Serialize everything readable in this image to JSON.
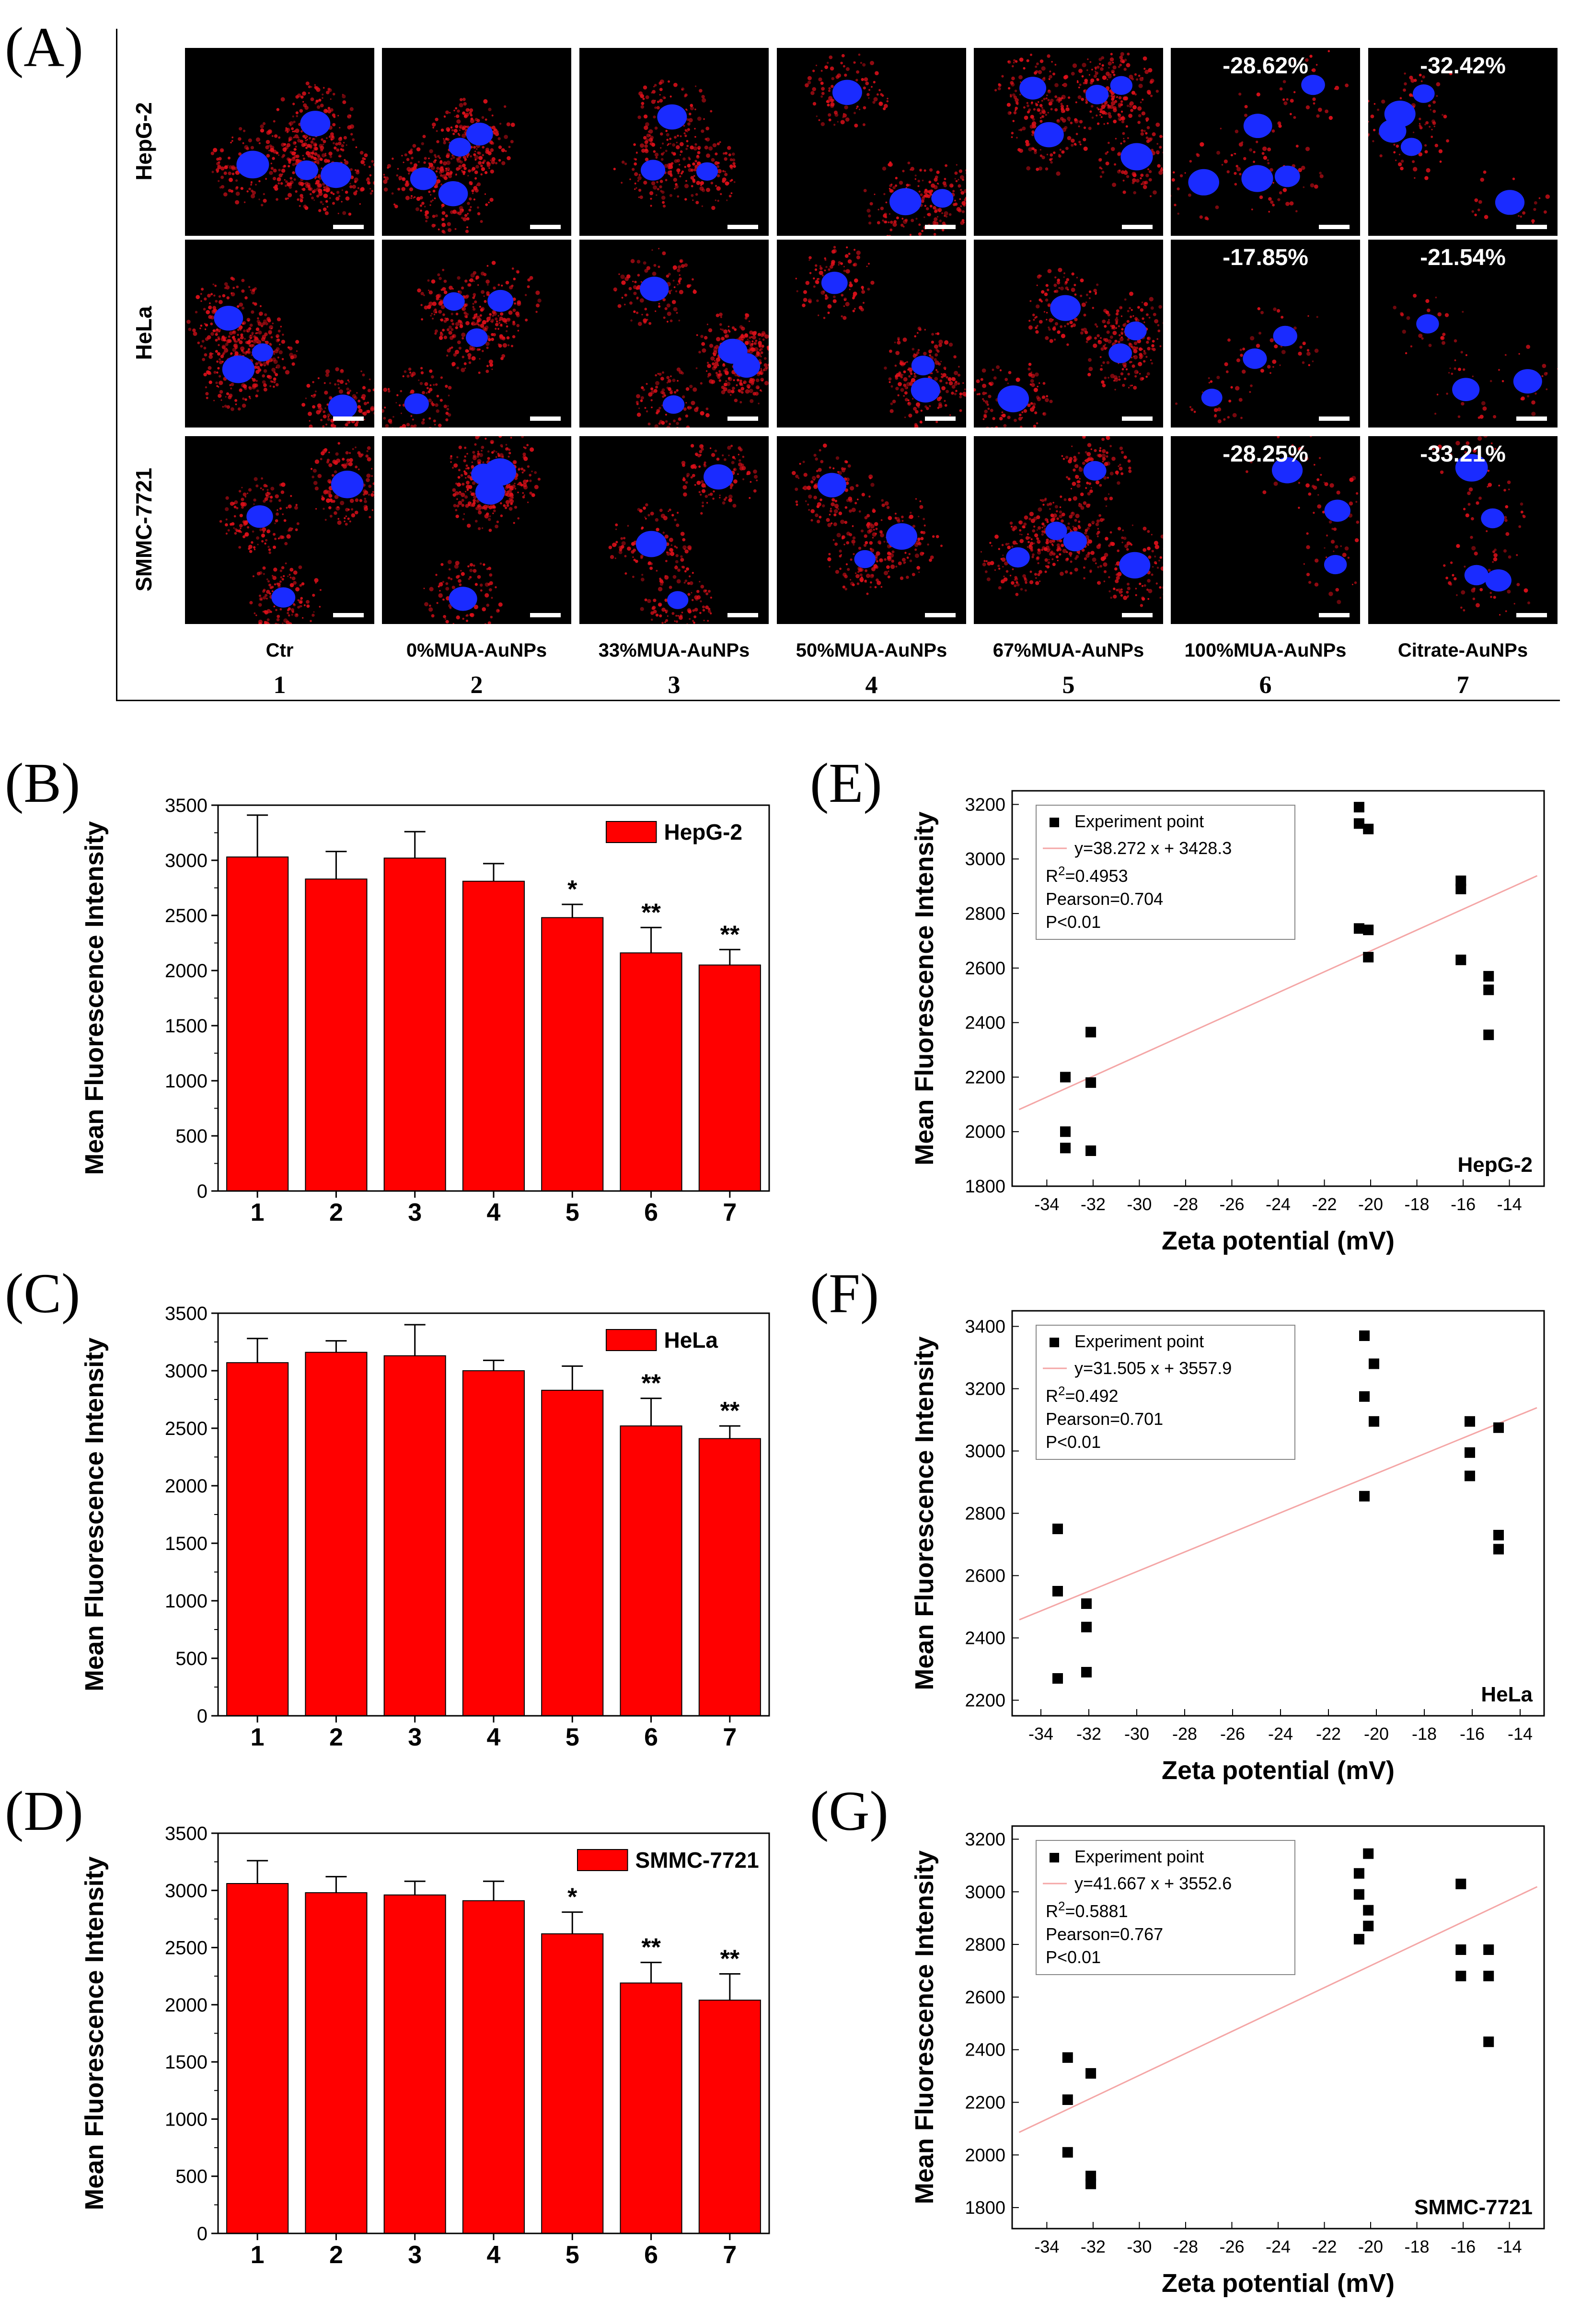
{
  "panels": {
    "a": "(A)",
    "b": "(B)",
    "c": "(C)",
    "d": "(D)",
    "e": "(E)",
    "f": "(F)",
    "g": "(G)"
  },
  "microscopy": {
    "rows": [
      "HepG-2",
      "HeLa",
      "SMMC-7721"
    ],
    "columns": [
      {
        "label": "Ctr",
        "num": "1"
      },
      {
        "label": "0%MUA-AuNPs",
        "num": "2"
      },
      {
        "label": "33%MUA-AuNPs",
        "num": "3"
      },
      {
        "label": "50%MUA-AuNPs",
        "num": "4"
      },
      {
        "label": "67%MUA-AuNPs",
        "num": "5"
      },
      {
        "label": "100%MUA-AuNPs",
        "num": "6"
      },
      {
        "label": "Citrate-AuNPs",
        "num": "7"
      }
    ],
    "percent_labels": [
      [
        "",
        "",
        "",
        "",
        "",
        "-28.62%",
        "-32.42%"
      ],
      [
        "",
        "",
        "",
        "",
        "",
        "-17.85%",
        "-21.54%"
      ],
      [
        "",
        "",
        "",
        "",
        "",
        "-28.25%",
        "-33.21%"
      ]
    ]
  },
  "colors": {
    "bar": "#ff0000",
    "fit": "#f4a6a6",
    "marker": "#000000",
    "red_signal": "#e0101a",
    "nucleus": "#1a2bff"
  },
  "chart_data": [
    {
      "id": "B",
      "type": "bar",
      "legend": "HepG-2",
      "ylabel": "Mean Fluorescence Intensity",
      "categories": [
        "1",
        "2",
        "3",
        "4",
        "5",
        "6",
        "7"
      ],
      "values": [
        3030,
        2830,
        3020,
        2810,
        2480,
        2160,
        2050
      ],
      "errors": [
        380,
        250,
        240,
        160,
        120,
        230,
        140
      ],
      "sig": [
        "",
        "",
        "",
        "",
        "*",
        "**",
        "**"
      ],
      "ylim": [
        0,
        3500
      ],
      "yticks": [
        0,
        500,
        1000,
        1500,
        2000,
        2500,
        3000,
        3500
      ]
    },
    {
      "id": "C",
      "type": "bar",
      "legend": "HeLa",
      "ylabel": "Mean Fluorescence Intensity",
      "categories": [
        "1",
        "2",
        "3",
        "4",
        "5",
        "6",
        "7"
      ],
      "values": [
        3070,
        3160,
        3130,
        3000,
        2830,
        2520,
        2410
      ],
      "errors": [
        210,
        100,
        270,
        90,
        210,
        240,
        110
      ],
      "sig": [
        "",
        "",
        "",
        "",
        "",
        "**",
        "**"
      ],
      "ylim": [
        0,
        3500
      ],
      "yticks": [
        0,
        500,
        1000,
        1500,
        2000,
        2500,
        3000,
        3500
      ]
    },
    {
      "id": "D",
      "type": "bar",
      "legend": "SMMC-7721",
      "ylabel": "Mean Fluorescence Intensity",
      "categories": [
        "1",
        "2",
        "3",
        "4",
        "5",
        "6",
        "7"
      ],
      "values": [
        3060,
        2980,
        2960,
        2910,
        2620,
        2190,
        2040
      ],
      "errors": [
        200,
        140,
        120,
        170,
        190,
        180,
        230
      ],
      "sig": [
        "",
        "",
        "",
        "",
        "*",
        "**",
        "**"
      ],
      "ylim": [
        0,
        3500
      ],
      "yticks": [
        0,
        500,
        1000,
        1500,
        2000,
        2500,
        3000,
        3500
      ]
    },
    {
      "id": "E",
      "type": "scatter",
      "cell": "HepG-2",
      "xlabel": "Zeta potential (mV)",
      "ylabel": "Mean Fluorescence Intensity",
      "legend_point": "Experiment point",
      "equation": "y=38.272 x + 3428.3",
      "r2_prefix": "R",
      "r2_sup": "2",
      "r2_value": "=0.4953",
      "pearson": "Pearson=0.704",
      "pvalue": "P<0.01",
      "slope": 38.272,
      "intercept": 3428.3,
      "xlim": [
        -35.5,
        -12.5
      ],
      "ylim": [
        1800,
        3250
      ],
      "xticks": [
        -34,
        -32,
        -30,
        -28,
        -26,
        -24,
        -22,
        -20,
        -18,
        -16,
        -14
      ],
      "yticks": [
        1800,
        2000,
        2200,
        2400,
        2600,
        2800,
        3000,
        3200
      ],
      "points": [
        [
          -33.2,
          2200
        ],
        [
          -33.2,
          2000
        ],
        [
          -33.2,
          1940
        ],
        [
          -32.1,
          2365
        ],
        [
          -32.1,
          2180
        ],
        [
          -32.1,
          1930
        ],
        [
          -20.5,
          3190
        ],
        [
          -20.5,
          3130
        ],
        [
          -20.5,
          2745
        ],
        [
          -20.1,
          3110
        ],
        [
          -20.1,
          2740
        ],
        [
          -20.1,
          2640
        ],
        [
          -16.1,
          2920
        ],
        [
          -16.1,
          2890
        ],
        [
          -16.1,
          2630
        ],
        [
          -14.9,
          2570
        ],
        [
          -14.9,
          2520
        ],
        [
          -14.9,
          2355
        ]
      ]
    },
    {
      "id": "F",
      "type": "scatter",
      "cell": "HeLa",
      "xlabel": "Zeta potential (mV)",
      "ylabel": "Mean Fluorescence Intensity",
      "legend_point": "Experiment point",
      "equation": "y=31.505 x + 3557.9",
      "r2_prefix": "R",
      "r2_sup": "2",
      "r2_value": "=0.492",
      "pearson": "Pearson=0.701",
      "pvalue": "P<0.01",
      "slope": 31.505,
      "intercept": 3557.9,
      "xlim": [
        -35.2,
        -13
      ],
      "ylim": [
        2150,
        3450
      ],
      "xticks": [
        -34,
        -32,
        -30,
        -28,
        -26,
        -24,
        -22,
        -20,
        -18,
        -16,
        -14
      ],
      "yticks": [
        2200,
        2400,
        2600,
        2800,
        3000,
        3200,
        3400
      ],
      "points": [
        [
          -33.3,
          2750
        ],
        [
          -33.3,
          2550
        ],
        [
          -33.3,
          2270
        ],
        [
          -32.1,
          2510
        ],
        [
          -32.1,
          2435
        ],
        [
          -32.1,
          2290
        ],
        [
          -20.5,
          3370
        ],
        [
          -20.5,
          3175
        ],
        [
          -20.5,
          2855
        ],
        [
          -20.1,
          3280
        ],
        [
          -20.1,
          3095
        ],
        [
          -16.1,
          3095
        ],
        [
          -16.1,
          2995
        ],
        [
          -16.1,
          2920
        ],
        [
          -14.9,
          3075
        ],
        [
          -14.9,
          2730
        ],
        [
          -14.9,
          2685
        ]
      ]
    },
    {
      "id": "G",
      "type": "scatter",
      "cell": "SMMC-7721",
      "xlabel": "Zeta potential (mV)",
      "ylabel": "Mean Fluorescence Intensity",
      "legend_point": "Experiment point",
      "equation": "y=41.667 x + 3552.6",
      "r2_prefix": "R",
      "r2_sup": "2",
      "r2_value": "=0.5881",
      "pearson": "Pearson=0.767",
      "pvalue": "P<0.01",
      "slope": 41.667,
      "intercept": 3552.6,
      "xlim": [
        -35.5,
        -12.5
      ],
      "ylim": [
        1720,
        3250
      ],
      "xticks": [
        -34,
        -32,
        -30,
        -28,
        -26,
        -24,
        -22,
        -20,
        -18,
        -16,
        -14
      ],
      "yticks": [
        1800,
        2000,
        2200,
        2400,
        2600,
        2800,
        3000,
        3200
      ],
      "points": [
        [
          -33.1,
          2370
        ],
        [
          -33.1,
          2210
        ],
        [
          -33.1,
          2010
        ],
        [
          -32.1,
          2310
        ],
        [
          -32.1,
          1920
        ],
        [
          -32.1,
          1890
        ],
        [
          -20.5,
          3070
        ],
        [
          -20.5,
          2990
        ],
        [
          -20.5,
          2820
        ],
        [
          -20.1,
          3145
        ],
        [
          -20.1,
          2930
        ],
        [
          -20.1,
          2870
        ],
        [
          -16.1,
          3030
        ],
        [
          -16.1,
          2780
        ],
        [
          -16.1,
          2680
        ],
        [
          -14.9,
          2780
        ],
        [
          -14.9,
          2680
        ],
        [
          -14.9,
          2430
        ]
      ]
    }
  ]
}
